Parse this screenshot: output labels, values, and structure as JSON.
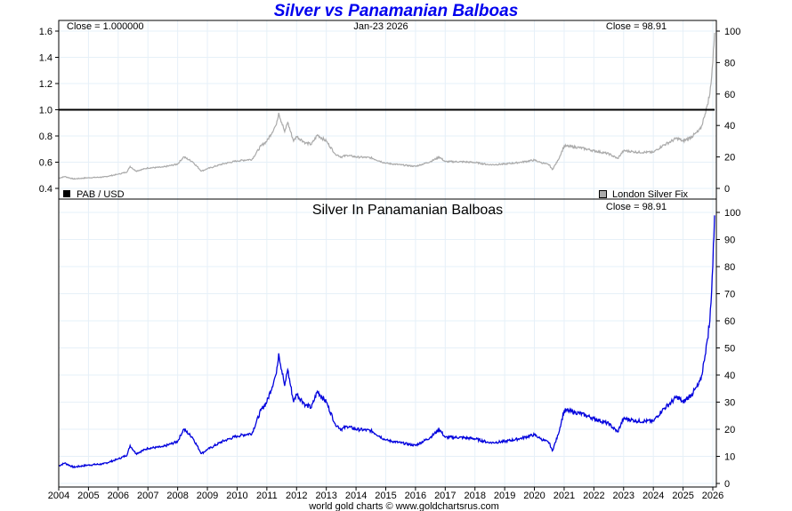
{
  "chart_data": [
    {
      "type": "line",
      "panel": "upper",
      "title": "Silver vs Panamanian Balboas",
      "annotations": {
        "close_left": "Close = 1.000000",
        "date": "Jan-23  2026",
        "close_right": "Close = 98.91"
      },
      "legend": [
        {
          "label": "PAB / USD",
          "color": "#000000",
          "position": "bottom-left"
        },
        {
          "label": "London Silver Fix",
          "color": "#aaaaaa",
          "position": "bottom-right"
        }
      ],
      "left_axis": {
        "ylim": [
          0.4,
          1.6
        ],
        "ticks": [
          "1.6",
          "1.4",
          "1.2",
          "1.0",
          "0.8",
          "0.6",
          "0.4"
        ]
      },
      "right_axis": {
        "ylim": [
          0,
          100
        ],
        "ticks": [
          "100",
          "80",
          "60",
          "40",
          "20",
          "0"
        ]
      },
      "series": [
        {
          "name": "PAB / USD",
          "axis": "left",
          "color": "#000000",
          "x": [
            2004,
            2026.06
          ],
          "values": [
            1.0,
            1.0
          ]
        },
        {
          "name": "London Silver Fix",
          "axis": "right",
          "color": "#aaaaaa",
          "x": [
            2004.0,
            2004.2,
            2004.5,
            2005.0,
            2005.5,
            2006.0,
            2006.3,
            2006.4,
            2006.6,
            2007.0,
            2007.5,
            2008.0,
            2008.2,
            2008.5,
            2008.8,
            2009.0,
            2009.5,
            2010.0,
            2010.5,
            2010.8,
            2011.0,
            2011.3,
            2011.4,
            2011.6,
            2011.7,
            2011.9,
            2012.0,
            2012.3,
            2012.5,
            2012.7,
            2013.0,
            2013.3,
            2013.5,
            2013.7,
            2014.0,
            2014.5,
            2015.0,
            2015.5,
            2016.0,
            2016.5,
            2016.8,
            2017.0,
            2017.5,
            2018.0,
            2018.5,
            2019.0,
            2019.5,
            2020.0,
            2020.2,
            2020.5,
            2020.6,
            2020.8,
            2021.0,
            2021.5,
            2022.0,
            2022.5,
            2022.8,
            2023.0,
            2023.5,
            2024.0,
            2024.3,
            2024.6,
            2024.8,
            2025.0,
            2025.3,
            2025.5,
            2025.6,
            2025.7,
            2025.8,
            2025.9,
            2026.0,
            2026.06
          ],
          "values": [
            6.5,
            7.5,
            6.0,
            6.8,
            7.2,
            9.0,
            10.5,
            14.0,
            11.0,
            13.0,
            13.5,
            15.5,
            20.0,
            17.0,
            11.0,
            12.5,
            15.5,
            17.5,
            18.5,
            27.0,
            30.0,
            40.0,
            48.0,
            36.0,
            42.0,
            30.0,
            33.0,
            29.0,
            28.0,
            34.0,
            30.0,
            22.0,
            20.0,
            21.0,
            20.0,
            19.5,
            16.0,
            15.0,
            14.0,
            17.0,
            20.0,
            17.0,
            17.0,
            16.5,
            15.0,
            15.5,
            16.5,
            18.0,
            16.5,
            15.0,
            12.0,
            18.0,
            27.0,
            26.0,
            24.0,
            22.0,
            19.0,
            24.0,
            23.0,
            23.0,
            27.0,
            30.0,
            32.0,
            30.0,
            33.0,
            36.0,
            38.0,
            45.0,
            52.0,
            60.0,
            80.0,
            98.91
          ]
        }
      ]
    },
    {
      "type": "line",
      "panel": "lower",
      "title": "Silver In Panamanian Balboas",
      "annotations": {
        "close": "Close = 98.91"
      },
      "right_axis": {
        "ylim": [
          0,
          100
        ],
        "ticks": [
          "100",
          "90",
          "80",
          "70",
          "60",
          "50",
          "40",
          "30",
          "20",
          "10",
          "0"
        ]
      },
      "series": [
        {
          "name": "Silver In Panamanian Balboas",
          "axis": "right",
          "color": "#0000dd",
          "x": [
            2004.0,
            2004.2,
            2004.5,
            2005.0,
            2005.5,
            2006.0,
            2006.3,
            2006.4,
            2006.6,
            2007.0,
            2007.5,
            2008.0,
            2008.2,
            2008.5,
            2008.8,
            2009.0,
            2009.5,
            2010.0,
            2010.5,
            2010.8,
            2011.0,
            2011.3,
            2011.4,
            2011.6,
            2011.7,
            2011.9,
            2012.0,
            2012.3,
            2012.5,
            2012.7,
            2013.0,
            2013.3,
            2013.5,
            2013.7,
            2014.0,
            2014.5,
            2015.0,
            2015.5,
            2016.0,
            2016.5,
            2016.8,
            2017.0,
            2017.5,
            2018.0,
            2018.5,
            2019.0,
            2019.5,
            2020.0,
            2020.2,
            2020.5,
            2020.6,
            2020.8,
            2021.0,
            2021.5,
            2022.0,
            2022.5,
            2022.8,
            2023.0,
            2023.5,
            2024.0,
            2024.3,
            2024.6,
            2024.8,
            2025.0,
            2025.3,
            2025.5,
            2025.6,
            2025.7,
            2025.8,
            2025.9,
            2026.0,
            2026.06
          ],
          "values": [
            6.5,
            7.5,
            6.0,
            6.8,
            7.2,
            9.0,
            10.5,
            14.0,
            11.0,
            13.0,
            13.5,
            15.5,
            20.0,
            17.0,
            11.0,
            12.5,
            15.5,
            17.5,
            18.5,
            27.0,
            30.0,
            40.0,
            48.0,
            36.0,
            42.0,
            30.0,
            33.0,
            29.0,
            28.0,
            34.0,
            30.0,
            22.0,
            20.0,
            21.0,
            20.0,
            19.5,
            16.0,
            15.0,
            14.0,
            17.0,
            20.0,
            17.0,
            17.0,
            16.5,
            15.0,
            15.5,
            16.5,
            18.0,
            16.5,
            15.0,
            12.0,
            18.0,
            27.0,
            26.0,
            24.0,
            22.0,
            19.0,
            24.0,
            23.0,
            23.0,
            27.0,
            30.0,
            32.0,
            30.0,
            33.0,
            36.0,
            38.0,
            45.0,
            52.0,
            60.0,
            80.0,
            98.91
          ]
        }
      ]
    }
  ],
  "x_axis": {
    "xlim": [
      2004,
      2026.12
    ],
    "ticks": [
      "2004",
      "2005",
      "2006",
      "2007",
      "2008",
      "2009",
      "2010",
      "2011",
      "2012",
      "2013",
      "2014",
      "2015",
      "2016",
      "2017",
      "2018",
      "2019",
      "2020",
      "2021",
      "2022",
      "2023",
      "2024",
      "2025",
      "2026"
    ]
  },
  "footer": "world gold charts © www.goldchartsrus.com",
  "colors": {
    "title": "#0000ee",
    "grid": "#e6f0f8",
    "silver": "#aaaaaa",
    "balboa_line": "#0000dd"
  }
}
